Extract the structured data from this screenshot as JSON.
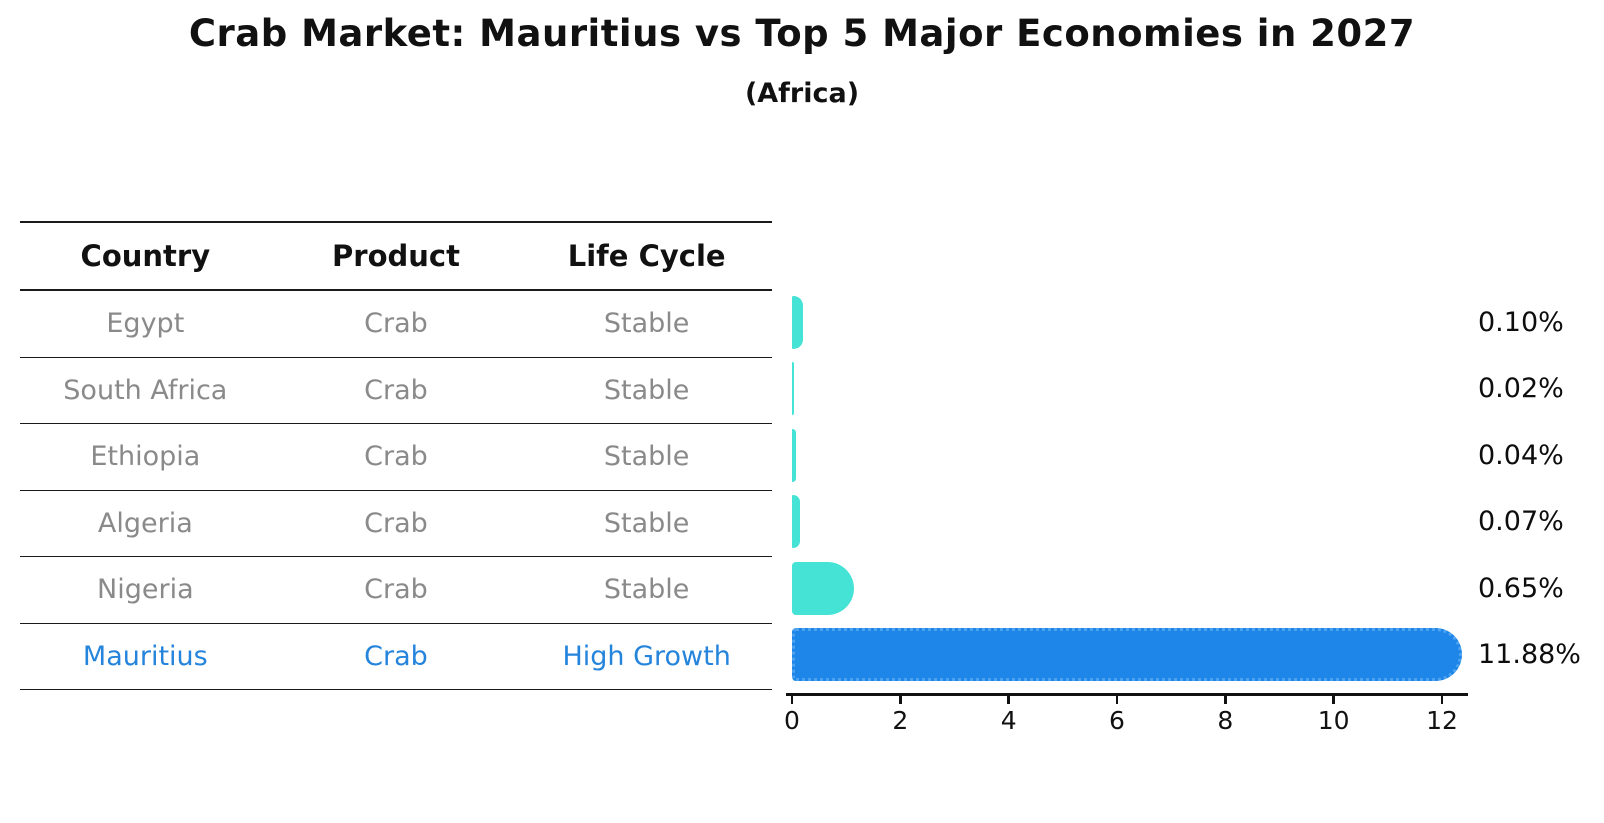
{
  "title": "Crab Market: Mauritius vs Top 5 Major Economies in 2027",
  "subtitle": "(Africa)",
  "table": {
    "headers": [
      "Country",
      "Product",
      "Life Cycle"
    ],
    "rows": [
      {
        "country": "Egypt",
        "product": "Crab",
        "life_cycle": "Stable",
        "highlight": false
      },
      {
        "country": "South Africa",
        "product": "Crab",
        "life_cycle": "Stable",
        "highlight": false
      },
      {
        "country": "Ethiopia",
        "product": "Crab",
        "life_cycle": "Stable",
        "highlight": false
      },
      {
        "country": "Algeria",
        "product": "Crab",
        "life_cycle": "Stable",
        "highlight": false
      },
      {
        "country": "Nigeria",
        "product": "Crab",
        "life_cycle": "Stable",
        "highlight": false
      },
      {
        "country": "Mauritius",
        "product": "Crab",
        "life_cycle": "High Growth",
        "highlight": true
      }
    ]
  },
  "chart_data": {
    "type": "bar",
    "orientation": "horizontal",
    "categories": [
      "Egypt",
      "South Africa",
      "Ethiopia",
      "Algeria",
      "Nigeria",
      "Mauritius"
    ],
    "values": [
      0.1,
      0.02,
      0.04,
      0.07,
      0.65,
      11.88
    ],
    "value_labels": [
      "0.10%",
      "0.02%",
      "0.04%",
      "0.07%",
      "0.65%",
      "11.88%"
    ],
    "x_ticks": [
      "0",
      "2",
      "4",
      "6",
      "8",
      "10",
      "12"
    ],
    "xlim": [
      0,
      12
    ],
    "highlight_index": 5,
    "grid": "off",
    "legend": "none"
  },
  "colors": {
    "default_bar": "#45E2D6",
    "highlight_bar": "#1E86E8",
    "highlight_text": "#2584DB",
    "row_text": "#8a8a8a",
    "axis": "#111111",
    "label_text": "#0d0d0d"
  }
}
